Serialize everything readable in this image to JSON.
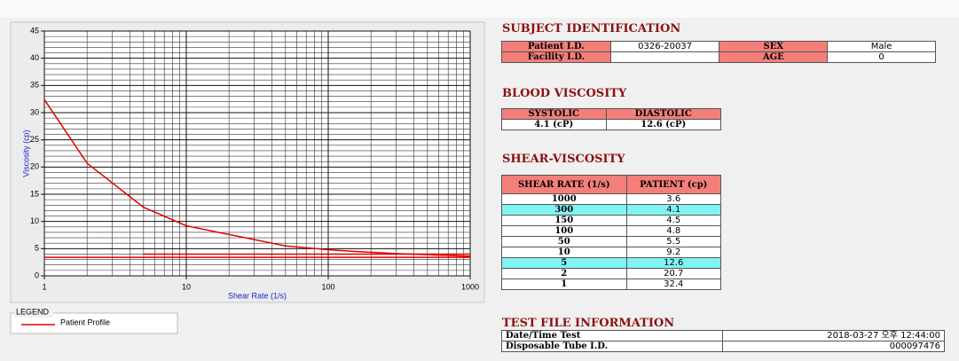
{
  "chart_data": {
    "type": "line",
    "xlabel": "Shear Rate (1/s)",
    "ylabel": "Viscosity (cp)",
    "xscale": "log",
    "xlim": [
      1,
      1000
    ],
    "xticks": [
      1,
      10,
      100,
      1000
    ],
    "ylim": [
      0,
      45
    ],
    "yticks": [
      0,
      5,
      10,
      15,
      20,
      25,
      30,
      35,
      40,
      45
    ],
    "grid": true,
    "minor_grid": true,
    "legend_title": "LEGEND",
    "series": [
      {
        "name": "Patient Profile",
        "color": "#e00000",
        "x": [
          1,
          2,
          5,
          10,
          50,
          100,
          150,
          300,
          1000
        ],
        "values": [
          32.4,
          20.7,
          12.6,
          9.2,
          5.5,
          4.8,
          4.5,
          4.1,
          3.6
        ]
      },
      {
        "color": "#e00000",
        "x": [
          1,
          1000
        ],
        "values": [
          3.4,
          3.4
        ]
      },
      {
        "color": "#e00000",
        "x": [
          5,
          1000
        ],
        "values": [
          4,
          4
        ]
      }
    ]
  },
  "subject": {
    "title": "SUBJECT IDENTIFICATION",
    "fields": [
      {
        "label": "Patient I.D.",
        "value": "0326-20037"
      },
      {
        "label": "SEX",
        "value": "Male"
      },
      {
        "label": "Facility I.D."
      },
      {
        "label": "AGE",
        "value": "0"
      }
    ]
  },
  "blood": {
    "title": "BLOOD VISCOSITY",
    "headers": [
      "SYSTOLIC",
      "DIASTOLIC"
    ],
    "values": [
      "4.1 (cP)",
      "12.6 (cP)"
    ]
  },
  "shear": {
    "title": "SHEAR-VISCOSITY",
    "headers": [
      "SHEAR RATE (1/s)",
      "PATIENT (cp)"
    ],
    "rows": [
      [
        1000,
        3.6
      ],
      [
        300,
        4.1
      ],
      [
        150,
        4.5
      ],
      [
        100,
        4.8
      ],
      [
        50,
        5.5
      ],
      [
        10,
        9.2
      ],
      [
        5,
        12.6
      ],
      [
        2,
        20.7
      ],
      [
        1,
        32.4
      ]
    ],
    "highlight": [
      1,
      6
    ]
  },
  "testfile": {
    "title": "TEST FILE INFORMATION",
    "rows": [
      [
        "Date/Time Test",
        "2018-03-27  오후 12:44:00"
      ],
      [
        "Disposable Tube I.D.",
        "000097476"
      ]
    ]
  }
}
